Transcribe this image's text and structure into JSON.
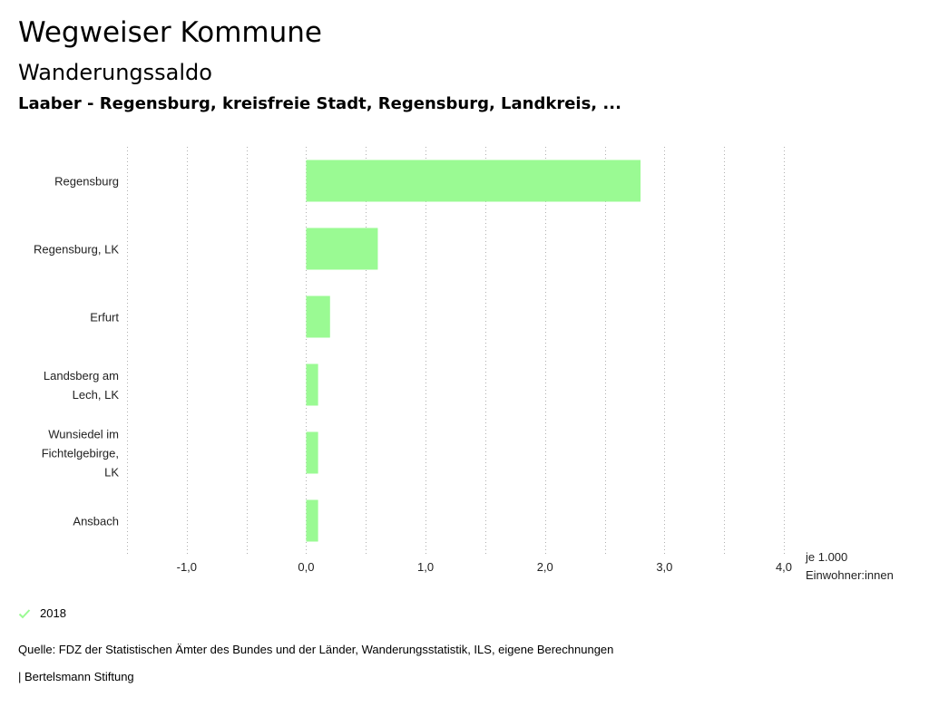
{
  "header": {
    "title": "Wegweiser Kommune",
    "subtitle": "Wanderungssaldo",
    "region": "Laaber - Regensburg, kreisfreie Stadt, Regensburg, Landkreis, ..."
  },
  "chart_data": {
    "type": "bar",
    "orientation": "horizontal",
    "categories": [
      [
        "Regensburg"
      ],
      [
        "Regensburg, LK"
      ],
      [
        "Erfurt"
      ],
      [
        "Landsberg am",
        "Lech, LK"
      ],
      [
        "Wunsiedel im",
        "Fichtelgebirge,",
        "LK"
      ],
      [
        "Ansbach"
      ]
    ],
    "series": [
      {
        "name": "2018",
        "values": [
          2.8,
          0.6,
          0.2,
          0.1,
          0.1,
          0.1
        ],
        "color": "#9afa93"
      }
    ],
    "xlim": [
      -1.5,
      4.0
    ],
    "xticks": [
      -1.0,
      0.0,
      1.0,
      2.0,
      3.0,
      4.0
    ],
    "xtick_labels": [
      "-1,0",
      "0,0",
      "1,0",
      "2,0",
      "3,0",
      "4,0"
    ],
    "xlabel": [
      "je 1.000",
      "Einwohner:innen"
    ],
    "grid": "vertical dotted"
  },
  "legend": {
    "label": "2018",
    "color": "#9afa93"
  },
  "footer": {
    "source": "Quelle: FDZ der Statistischen Ämter des Bundes und der Länder, Wanderungsstatistik, ILS, eigene Berechnungen",
    "brand": "| Bertelsmann Stiftung"
  }
}
